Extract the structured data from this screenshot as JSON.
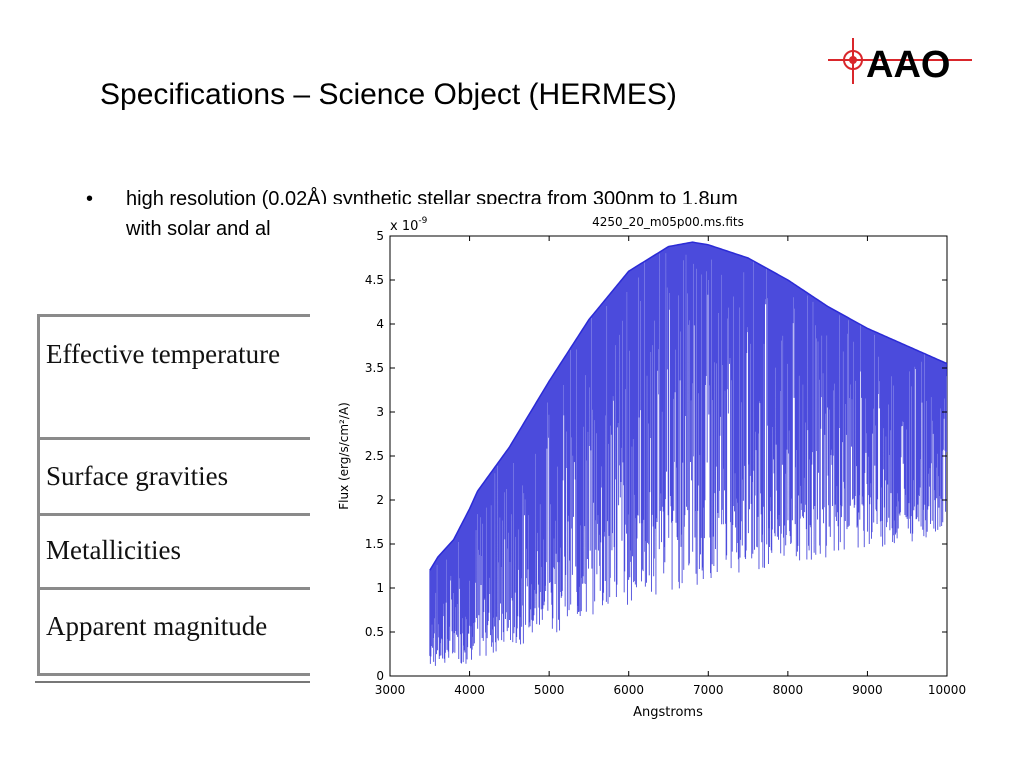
{
  "slide": {
    "title": "Specifications – Science Object (HERMES)",
    "bullet_marker": "•",
    "bullet_line1": "high resolution (0.02Å) synthetic stellar spectra from 300nm to 1.8µm",
    "bullet_line2": "with solar and al",
    "logo_text": "AAO"
  },
  "spec_table": {
    "rows": [
      "Effective temperature",
      "Surface gravities",
      "Metallicities",
      "Apparent magnitude"
    ]
  },
  "chart_data": {
    "type": "line",
    "title": "4250_20_m05p00.ms.fits",
    "xlabel": "Angstroms",
    "ylabel": "Flux (erg/s/cm²/A)",
    "y_multiplier": "x 10",
    "y_multiplier_exp": "-9",
    "xlim": [
      3000,
      10000
    ],
    "ylim": [
      0,
      5
    ],
    "xticks": [
      3000,
      4000,
      5000,
      6000,
      7000,
      8000,
      9000,
      10000
    ],
    "yticks": [
      0,
      0.5,
      1,
      1.5,
      2,
      2.5,
      3,
      3.5,
      4,
      4.5,
      5
    ],
    "ytick_labels": [
      "0",
      "0.5",
      "1",
      "1.5",
      "2",
      "2.5",
      "3",
      "3.5",
      "4",
      "4.5",
      "5"
    ],
    "line_color": "#2b2bd6",
    "continuum": {
      "x": [
        3500,
        3600,
        3800,
        4000,
        4100,
        4500,
        5000,
        5500,
        6000,
        6500,
        6800,
        7000,
        7500,
        8000,
        8500,
        9000,
        9500,
        10000
      ],
      "y": [
        1.2,
        1.35,
        1.55,
        1.9,
        2.1,
        2.6,
        3.35,
        4.05,
        4.6,
        4.88,
        4.93,
        4.9,
        4.75,
        4.5,
        4.2,
        3.95,
        3.75,
        3.55
      ]
    },
    "lower_envelope": {
      "x": [
        3500,
        3600,
        3800,
        4000,
        4500,
        5000,
        5500,
        6000,
        6500,
        7000,
        7500,
        8000,
        8500,
        9000,
        9500,
        10000
      ],
      "y": [
        0.0,
        0.05,
        0.05,
        0.05,
        0.2,
        0.3,
        0.45,
        0.6,
        0.75,
        0.85,
        0.98,
        1.1,
        1.2,
        1.3,
        1.4,
        1.5
      ]
    }
  }
}
